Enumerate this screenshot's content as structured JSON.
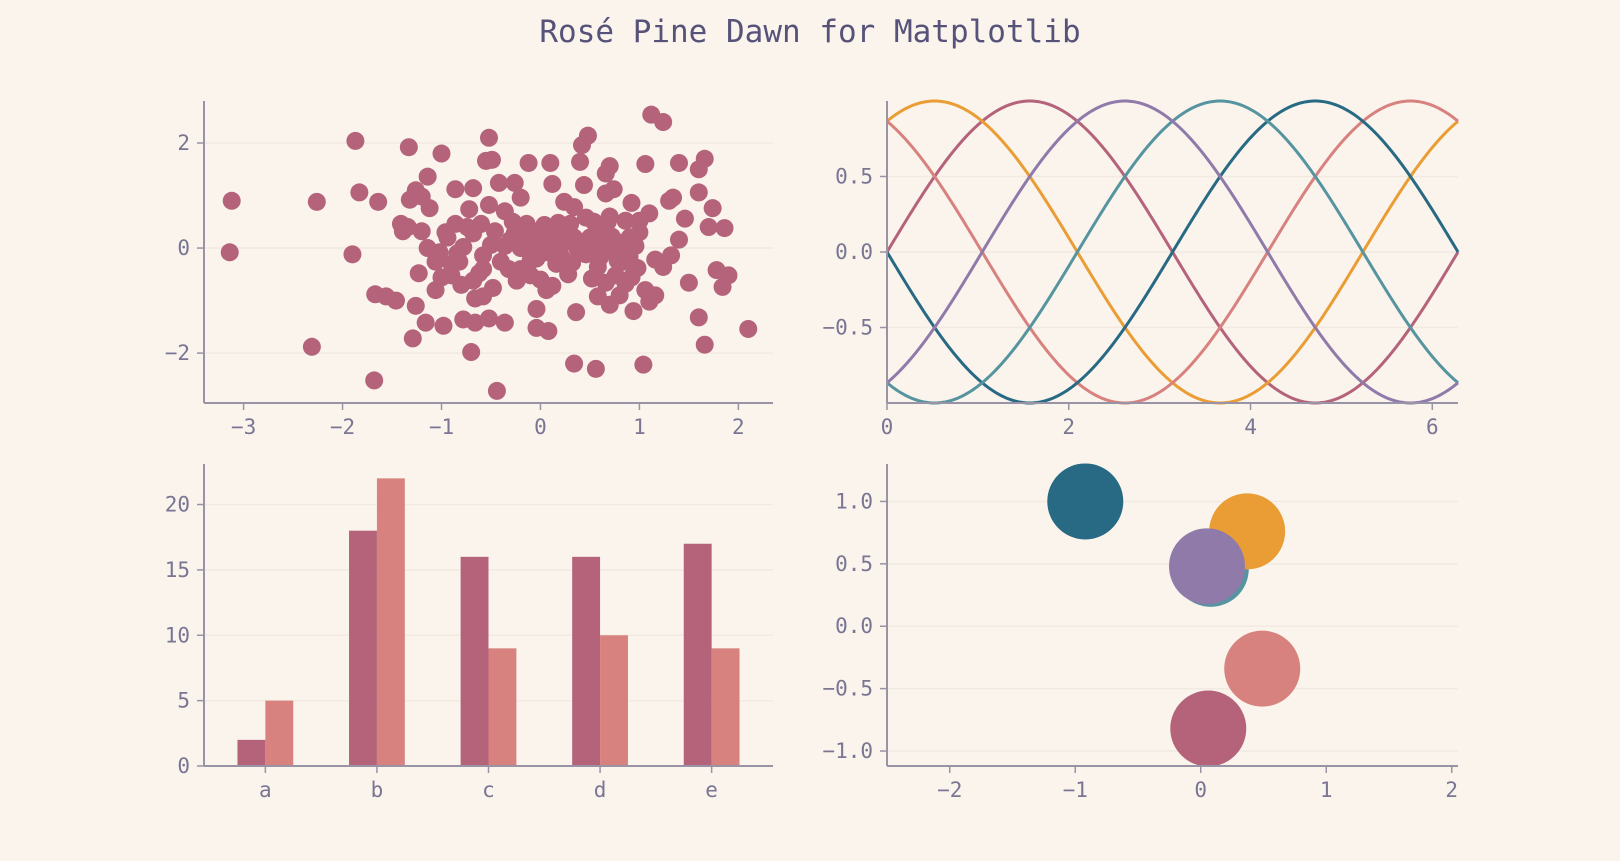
{
  "figure": {
    "title": "Rosé Pine Dawn for Matplotlib",
    "background": "#faf4ed",
    "axis_color": "#9893a5",
    "grid_color": "#f2e9e1",
    "text_color": "#797593",
    "title_color": "#575279"
  },
  "chart_data": [
    {
      "type": "scatter",
      "xlim": [
        -3.4,
        2.35
      ],
      "ylim": [
        -2.95,
        2.8
      ],
      "xticks": [
        -3,
        -2,
        -1,
        0,
        1,
        2
      ],
      "xtick_labels": [
        "−3",
        "−2",
        "−1",
        "0",
        "1",
        "2"
      ],
      "yticks": [
        -2,
        0,
        2
      ],
      "ytick_labels": [
        "−2",
        "0",
        "2"
      ],
      "grid": "horizontal",
      "color": "#b4637a",
      "points": [
        [
          -3.12,
          0.9
        ],
        [
          -3.14,
          -0.08
        ],
        [
          -2.26,
          0.88
        ],
        [
          -2.31,
          -1.88
        ],
        [
          -1.87,
          2.04
        ],
        [
          -1.83,
          1.06
        ],
        [
          -1.9,
          -0.12
        ],
        [
          -1.68,
          -2.52
        ],
        [
          -1.64,
          0.88
        ],
        [
          -1.33,
          1.92
        ],
        [
          -1.26,
          1.1
        ],
        [
          -1.14,
          1.36
        ],
        [
          -1.32,
          0.92
        ],
        [
          -1.41,
          0.46
        ],
        [
          -1.39,
          0.32
        ],
        [
          -1.23,
          -0.48
        ],
        [
          -1.67,
          -0.88
        ],
        [
          -1.56,
          -0.92
        ],
        [
          -1.46,
          -1.0
        ],
        [
          -1.26,
          -1.1
        ],
        [
          -1.29,
          -1.72
        ],
        [
          -1.0,
          1.8
        ],
        [
          -0.86,
          1.12
        ],
        [
          -0.68,
          1.14
        ],
        [
          -0.72,
          0.74
        ],
        [
          -0.86,
          0.46
        ],
        [
          -0.94,
          0.2
        ],
        [
          -1.02,
          -0.08
        ],
        [
          -0.9,
          -0.3
        ],
        [
          -1.0,
          -0.56
        ],
        [
          -1.06,
          -0.8
        ],
        [
          -1.16,
          -1.42
        ],
        [
          -0.98,
          -1.48
        ],
        [
          -0.78,
          -1.36
        ],
        [
          -0.66,
          -1.42
        ],
        [
          -0.7,
          -1.98
        ],
        [
          -0.82,
          -0.26
        ],
        [
          -0.74,
          0.4
        ],
        [
          -0.52,
          2.1
        ],
        [
          -0.55,
          1.66
        ],
        [
          -0.49,
          1.68
        ],
        [
          -0.42,
          1.24
        ],
        [
          -0.26,
          1.24
        ],
        [
          -0.52,
          0.82
        ],
        [
          -0.36,
          0.7
        ],
        [
          -0.6,
          0.46
        ],
        [
          -0.46,
          0.32
        ],
        [
          -0.5,
          0.06
        ],
        [
          -0.58,
          -0.14
        ],
        [
          -0.4,
          -0.26
        ],
        [
          -0.62,
          -0.48
        ],
        [
          -0.48,
          -0.76
        ],
        [
          -0.58,
          -0.92
        ],
        [
          -0.66,
          -0.96
        ],
        [
          -0.52,
          -1.34
        ],
        [
          -0.36,
          -1.42
        ],
        [
          -0.44,
          -2.72
        ],
        [
          -0.2,
          0.96
        ],
        [
          -0.12,
          1.62
        ],
        [
          -0.28,
          0.5
        ],
        [
          -0.22,
          0.2
        ],
        [
          -0.18,
          0.0
        ],
        [
          -0.08,
          0.32
        ],
        [
          -0.04,
          -0.2
        ],
        [
          -0.2,
          -0.4
        ],
        [
          -0.1,
          -0.52
        ],
        [
          -0.04,
          -1.16
        ],
        [
          -0.04,
          -1.52
        ],
        [
          0.08,
          -1.58
        ],
        [
          0.1,
          1.62
        ],
        [
          0.12,
          1.22
        ],
        [
          0.24,
          0.88
        ],
        [
          0.34,
          0.78
        ],
        [
          0.2,
          0.3
        ],
        [
          0.14,
          0.1
        ],
        [
          0.06,
          -0.08
        ],
        [
          0.0,
          -0.6
        ],
        [
          0.06,
          -0.8
        ],
        [
          0.32,
          -0.28
        ],
        [
          0.36,
          -1.22
        ],
        [
          0.34,
          -2.2
        ],
        [
          0.48,
          2.14
        ],
        [
          0.42,
          1.96
        ],
        [
          0.4,
          1.64
        ],
        [
          0.44,
          1.2
        ],
        [
          0.46,
          0.58
        ],
        [
          0.5,
          0.2
        ],
        [
          0.52,
          -0.58
        ],
        [
          0.58,
          -0.92
        ],
        [
          0.56,
          -2.3
        ],
        [
          0.66,
          1.42
        ],
        [
          0.7,
          1.56
        ],
        [
          0.66,
          1.04
        ],
        [
          0.74,
          1.12
        ],
        [
          0.7,
          0.6
        ],
        [
          0.72,
          0.22
        ],
        [
          0.64,
          -0.04
        ],
        [
          0.58,
          -0.36
        ],
        [
          0.66,
          -0.66
        ],
        [
          0.7,
          -1.08
        ],
        [
          0.8,
          -0.9
        ],
        [
          0.76,
          -0.52
        ],
        [
          0.86,
          0.52
        ],
        [
          0.9,
          0.2
        ],
        [
          0.84,
          -0.26
        ],
        [
          0.92,
          -0.56
        ],
        [
          0.94,
          -1.2
        ],
        [
          1.06,
          1.6
        ],
        [
          1.06,
          -0.8
        ],
        [
          1.1,
          -1.02
        ],
        [
          1.12,
          2.54
        ],
        [
          1.24,
          2.4
        ],
        [
          1.1,
          0.66
        ],
        [
          1.16,
          -0.9
        ],
        [
          1.04,
          -2.22
        ],
        [
          1.3,
          0.9
        ],
        [
          1.34,
          0.96
        ],
        [
          1.32,
          -0.14
        ],
        [
          1.4,
          1.62
        ],
        [
          1.4,
          0.16
        ],
        [
          1.46,
          0.56
        ],
        [
          1.6,
          1.5
        ],
        [
          1.66,
          1.7
        ],
        [
          1.6,
          1.06
        ],
        [
          1.5,
          -0.66
        ],
        [
          1.6,
          -1.32
        ],
        [
          1.66,
          -1.84
        ],
        [
          1.7,
          0.4
        ],
        [
          1.78,
          -0.42
        ],
        [
          1.74,
          0.76
        ],
        [
          1.86,
          0.38
        ],
        [
          1.9,
          -0.52
        ],
        [
          1.84,
          -0.74
        ],
        [
          2.1,
          -1.54
        ],
        [
          -0.2,
          0.0
        ],
        [
          -0.1,
          0.14
        ],
        [
          0.0,
          0.24
        ],
        [
          0.1,
          0.16
        ],
        [
          -0.06,
          -0.04
        ],
        [
          0.2,
          -0.12
        ],
        [
          0.26,
          0.12
        ],
        [
          -0.3,
          0.16
        ],
        [
          -0.36,
          0.04
        ],
        [
          0.04,
          0.44
        ],
        [
          0.18,
          0.48
        ],
        [
          -0.14,
          0.46
        ],
        [
          0.3,
          0.46
        ],
        [
          0.28,
          -0.5
        ],
        [
          0.38,
          -0.06
        ],
        [
          0.16,
          -0.3
        ],
        [
          -0.24,
          -0.62
        ],
        [
          0.12,
          -0.72
        ],
        [
          0.56,
          0.04
        ],
        [
          0.62,
          0.3
        ],
        [
          0.8,
          0.1
        ],
        [
          0.9,
          -0.16
        ],
        [
          0.96,
          0.04
        ],
        [
          1.0,
          0.3
        ],
        [
          1.0,
          0.52
        ],
        [
          0.98,
          -0.38
        ],
        [
          0.86,
          -0.68
        ],
        [
          0.78,
          -0.24
        ],
        [
          0.92,
          0.86
        ],
        [
          1.24,
          -0.36
        ],
        [
          1.16,
          -0.22
        ],
        [
          -0.68,
          0.28
        ],
        [
          -0.84,
          -0.1
        ],
        [
          -0.96,
          0.3
        ],
        [
          -0.78,
          0.02
        ],
        [
          -0.9,
          -0.52
        ],
        [
          -0.8,
          -0.7
        ],
        [
          -1.06,
          -0.26
        ],
        [
          -1.14,
          0.0
        ],
        [
          -1.2,
          0.32
        ],
        [
          -1.12,
          0.76
        ],
        [
          -1.2,
          0.98
        ],
        [
          -1.34,
          0.4
        ],
        [
          -0.58,
          -0.4
        ],
        [
          -0.68,
          -0.62
        ],
        [
          0.42,
          0.08
        ],
        [
          0.46,
          -0.12
        ],
        [
          0.6,
          -0.18
        ],
        [
          0.74,
          -0.08
        ],
        [
          0.68,
          0.5
        ],
        [
          0.54,
          0.5
        ],
        [
          0.34,
          0.2
        ],
        [
          -0.02,
          0.06
        ],
        [
          -0.26,
          0.28
        ],
        [
          -0.32,
          -0.4
        ],
        [
          -0.1,
          -0.24
        ]
      ]
    },
    {
      "type": "line",
      "xlim": [
        0,
        6.283
      ],
      "ylim": [
        -1.0,
        1.0
      ],
      "x_range": [
        0,
        6.283
      ],
      "xticks": [
        0,
        2,
        4,
        6
      ],
      "xtick_labels": [
        "0",
        "2",
        "4",
        "6"
      ],
      "yticks": [
        -0.5,
        0.0,
        0.5
      ],
      "ytick_labels": [
        "−0.5",
        "0.0",
        "0.5"
      ],
      "grid": "horizontal",
      "series": [
        {
          "phase": 0.0,
          "color": "#b4637a"
        },
        {
          "phase": 1.0472,
          "color": "#ea9d34"
        },
        {
          "phase": 2.0944,
          "color": "#d7827e"
        },
        {
          "phase": 3.1416,
          "color": "#286983"
        },
        {
          "phase": 4.1888,
          "color": "#56949f"
        },
        {
          "phase": 5.236,
          "color": "#907aa9"
        }
      ]
    },
    {
      "type": "bar",
      "categories": [
        "a",
        "b",
        "c",
        "d",
        "e"
      ],
      "ylim": [
        0,
        23.1
      ],
      "yticks": [
        0,
        5,
        10,
        15,
        20
      ],
      "ytick_labels": [
        "0",
        "5",
        "10",
        "15",
        "20"
      ],
      "grid": "horizontal",
      "series": [
        {
          "values": [
            2,
            18,
            16,
            16,
            17
          ],
          "color": "#b4637a"
        },
        {
          "values": [
            5,
            22,
            9,
            10,
            9
          ],
          "color": "#d7827e"
        }
      ]
    },
    {
      "type": "scatter",
      "xlim": [
        -2.5,
        2.05
      ],
      "ylim": [
        -1.12,
        1.3
      ],
      "xticks": [
        -2,
        -1,
        0,
        1,
        2
      ],
      "xtick_labels": [
        "−2",
        "−1",
        "0",
        "1",
        "2"
      ],
      "yticks": [
        -1.0,
        -0.5,
        0.0,
        0.5,
        1.0
      ],
      "ytick_labels": [
        "−1.0",
        "−0.5",
        "0.0",
        "0.5",
        "1.0"
      ],
      "grid": "horizontal",
      "points": [
        {
          "x": 0.08,
          "y": 0.46,
          "color": "#56949f"
        },
        {
          "x": -0.92,
          "y": 1.0,
          "color": "#286983"
        },
        {
          "x": 0.37,
          "y": 0.76,
          "color": "#ea9d34"
        },
        {
          "x": 0.05,
          "y": 0.48,
          "color": "#907aa9"
        },
        {
          "x": 0.49,
          "y": -0.34,
          "color": "#d7827e"
        },
        {
          "x": 0.06,
          "y": -0.82,
          "color": "#b4637a"
        }
      ]
    }
  ]
}
